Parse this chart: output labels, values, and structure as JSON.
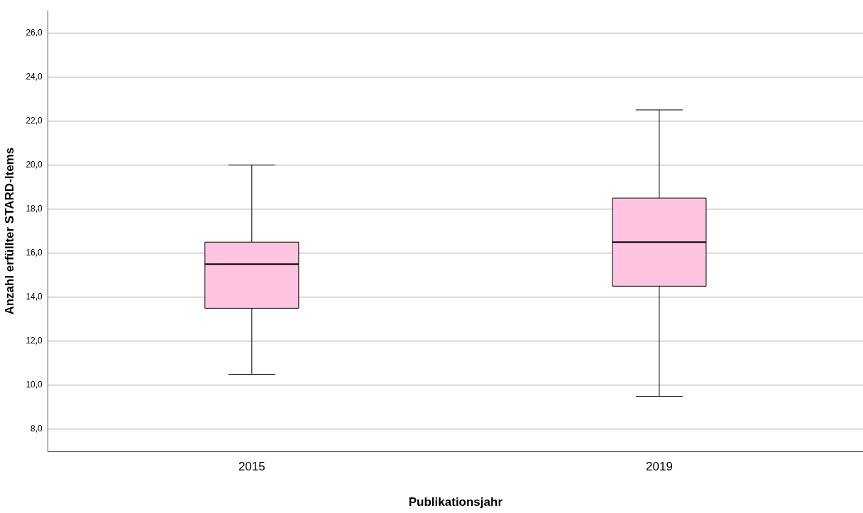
{
  "chart_data": {
    "type": "box",
    "xlabel": "Publikationsjahr",
    "ylabel": "Anzahl erfüllter STARD-Items",
    "categories": [
      "2015",
      "2019"
    ],
    "boxes": [
      {
        "low": 10.5,
        "q1": 13.5,
        "median": 15.5,
        "q3": 16.5,
        "high": 20
      },
      {
        "low": 9.5,
        "q1": 14.5,
        "median": 16.5,
        "q3": 18.5,
        "high": 22.5
      }
    ],
    "colors": [
      "#ffc4e1",
      "#ffc4e1"
    ],
    "ylim": [
      7,
      27
    ],
    "yticks": [
      {
        "value": 8,
        "label": "8,0"
      },
      {
        "value": 10,
        "label": "10,0"
      },
      {
        "value": 12,
        "label": "12,0"
      },
      {
        "value": 14,
        "label": "14,0"
      },
      {
        "value": 16,
        "label": "16,0"
      },
      {
        "value": 18,
        "label": "18,0"
      },
      {
        "value": 20,
        "label": "20,0"
      },
      {
        "value": 22,
        "label": "22,0"
      },
      {
        "value": 24,
        "label": "24,0"
      },
      {
        "value": 26,
        "label": "26,0"
      }
    ],
    "grid": "y"
  }
}
